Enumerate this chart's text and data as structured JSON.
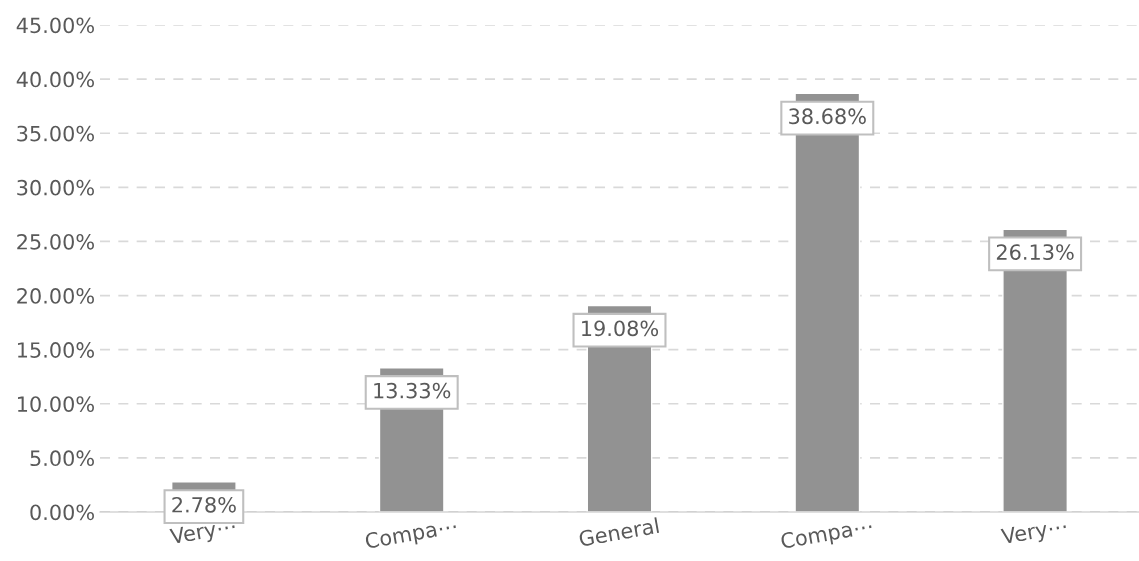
{
  "chart_data": {
    "type": "bar",
    "categories": [
      "Very⋯",
      "Compa⋯",
      "General",
      "Compa⋯",
      "Very⋯"
    ],
    "values": [
      2.78,
      13.33,
      19.08,
      38.68,
      26.13
    ],
    "color": "#929292",
    "value_labels": [
      "2.78%",
      "13.33%",
      "19.08%",
      "38.68%",
      "26.13%"
    ],
    "ylim": [
      0,
      45
    ],
    "yticks": [
      {
        "value": 0,
        "label": "0.00%"
      },
      {
        "value": 5,
        "label": "5.00%"
      },
      {
        "value": 10,
        "label": "10.00%"
      },
      {
        "value": 15,
        "label": "15.00%"
      },
      {
        "value": 20,
        "label": "20.00%"
      },
      {
        "value": 25,
        "label": "25.00%"
      },
      {
        "value": 30,
        "label": "30.00%"
      },
      {
        "value": 35,
        "label": "35.00%"
      },
      {
        "value": 40,
        "label": "40.00%"
      },
      {
        "value": 45,
        "label": "45.00%"
      }
    ],
    "grid": "y"
  }
}
